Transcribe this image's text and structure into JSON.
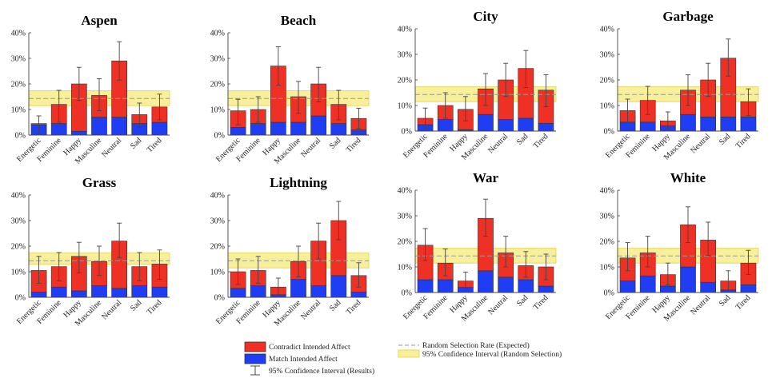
{
  "categories": [
    "Energetic",
    "Feminine",
    "Happy",
    "Masculine",
    "Neutral",
    "Sad",
    "Tired"
  ],
  "colors": {
    "contradict": "#ee3124",
    "match": "#1f3df2",
    "band": "#f7ef9a",
    "band_edge": "#e2d24a",
    "expected": "#9a9a9a"
  },
  "legend": {
    "contradict": "Contradict Intended Affect",
    "match": "Match Intended Affect",
    "ci_results": "95% Confidence Interval (Results)",
    "random_rate": "Random Selection Rate (Expected)",
    "ci_random": "95% Confidence Interval (Random Selection)"
  },
  "chart_data": [
    {
      "type": "bar",
      "title": "Aspen",
      "ytick_labels": [
        "0%",
        "10%",
        "20%",
        "30%",
        "40%"
      ],
      "ylim": [
        0,
        40
      ],
      "expected": 14.3,
      "band": [
        11.5,
        17.3
      ],
      "series": [
        {
          "name": "Match Intended Affect",
          "values": [
            4,
            4.5,
            1.5,
            7,
            7,
            4.5,
            5
          ]
        },
        {
          "name": "Contradict Intended Affect",
          "values": [
            0.5,
            7.5,
            18.5,
            8.5,
            22,
            3.5,
            6
          ]
        }
      ],
      "err": [
        [
          0.5,
          7.5
        ],
        [
          5,
          17.5
        ],
        [
          13.5,
          26.5
        ],
        [
          9.5,
          22
        ],
        [
          21.5,
          36.5
        ],
        [
          3,
          12.5
        ],
        [
          6,
          16
        ]
      ]
    },
    {
      "type": "bar",
      "title": "Beach",
      "ytick_labels": [
        "0%",
        "10%",
        "20%",
        "30%",
        "40%"
      ],
      "ylim": [
        0,
        40
      ],
      "expected": 14.3,
      "band": [
        11.5,
        17.3
      ],
      "series": [
        {
          "name": "Match Intended Affect",
          "values": [
            3,
            4.5,
            5,
            5,
            7.5,
            4.5,
            2
          ]
        },
        {
          "name": "Contradict Intended Affect",
          "values": [
            6.5,
            5.5,
            22,
            10,
            12.5,
            7.5,
            4.5
          ]
        }
      ],
      "err": [
        [
          4,
          14
        ],
        [
          5,
          15
        ],
        [
          19.5,
          34.5
        ],
        [
          8.5,
          21
        ],
        [
          13,
          26.5
        ],
        [
          6,
          17.5
        ],
        [
          2.5,
          10.5
        ]
      ]
    },
    {
      "type": "bar",
      "title": "City",
      "ytick_labels": [
        "0%",
        "10%",
        "20%",
        "30%",
        "40%"
      ],
      "ylim": [
        0,
        40
      ],
      "expected": 14.3,
      "band": [
        11.5,
        17.3
      ],
      "series": [
        {
          "name": "Match Intended Affect",
          "values": [
            2.5,
            4.5,
            0.5,
            6.5,
            4.5,
            5,
            3
          ]
        },
        {
          "name": "Contradict Intended Affect",
          "values": [
            2.5,
            5.5,
            8,
            10,
            15.5,
            19.5,
            13
          ]
        }
      ],
      "err": [
        [
          1,
          9
        ],
        [
          5,
          15
        ],
        [
          4,
          13.5
        ],
        [
          10,
          22.5
        ],
        [
          13.5,
          26.5
        ],
        [
          17,
          31.5
        ],
        [
          9.5,
          22
        ]
      ]
    },
    {
      "type": "bar",
      "title": "Garbage",
      "ytick_labels": [
        "0%",
        "10%",
        "20%",
        "30%",
        "40%"
      ],
      "ylim": [
        0,
        40
      ],
      "expected": 14.3,
      "band": [
        11.5,
        17.3
      ],
      "series": [
        {
          "name": "Match Intended Affect",
          "values": [
            3.5,
            3.5,
            2,
            6.5,
            5.5,
            5.5,
            5.5
          ]
        },
        {
          "name": "Contradict Intended Affect",
          "values": [
            4.5,
            8.5,
            2,
            9.5,
            14.5,
            23,
            6
          ]
        }
      ],
      "err": [
        [
          3.5,
          12.5
        ],
        [
          6.5,
          17.5
        ],
        [
          1,
          7.5
        ],
        [
          10,
          22
        ],
        [
          13.5,
          26.5
        ],
        [
          21.5,
          36
        ],
        [
          6,
          16.5
        ]
      ]
    },
    {
      "type": "bar",
      "title": "Grass",
      "ytick_labels": [
        "0%",
        "10%",
        "20%",
        "30%",
        "40%"
      ],
      "ylim": [
        0,
        40
      ],
      "expected": 14.3,
      "band": [
        13,
        17.3
      ],
      "series": [
        {
          "name": "Match Intended Affect",
          "values": [
            2,
            4,
            2.5,
            4.5,
            3.5,
            4.5,
            4
          ]
        },
        {
          "name": "Contradict Intended Affect",
          "values": [
            8.5,
            8,
            13.5,
            9.5,
            18.5,
            7.5,
            9
          ]
        }
      ],
      "err": [
        [
          5.5,
          16
        ],
        [
          6.5,
          17.5
        ],
        [
          9.5,
          21.5
        ],
        [
          8.5,
          20
        ],
        [
          15.5,
          29
        ],
        [
          6.5,
          17.5
        ],
        [
          7,
          18.5
        ]
      ]
    },
    {
      "type": "bar",
      "title": "Lightning",
      "ytick_labels": [
        "0%",
        "10%",
        "20%",
        "30%",
        "40%"
      ],
      "ylim": [
        0,
        40
      ],
      "expected": 14.3,
      "band": [
        11.5,
        17.3
      ],
      "series": [
        {
          "name": "Match Intended Affect",
          "values": [
            3.5,
            4.5,
            1,
            7,
            4.5,
            8.5,
            2
          ]
        },
        {
          "name": "Contradict Intended Affect",
          "values": [
            6.5,
            6,
            3,
            7,
            17.5,
            21.5,
            6.5
          ]
        }
      ],
      "err": [
        [
          5,
          15
        ],
        [
          5.5,
          16
        ],
        [
          1,
          7.5
        ],
        [
          8,
          20
        ],
        [
          15,
          29
        ],
        [
          22.5,
          37.5
        ],
        [
          4,
          13.5
        ]
      ]
    },
    {
      "type": "bar",
      "title": "War",
      "ytick_labels": [
        "0%",
        "10%",
        "20%",
        "30%",
        "40%"
      ],
      "ylim": [
        0,
        40
      ],
      "expected": 14.3,
      "band": [
        11.5,
        17.3
      ],
      "series": [
        {
          "name": "Match Intended Affect",
          "values": [
            5,
            5,
            2,
            8.5,
            6,
            5,
            2.5
          ]
        },
        {
          "name": "Contradict Intended Affect",
          "values": [
            13.5,
            6.5,
            2.5,
            20.5,
            9.5,
            5.5,
            7.5
          ]
        }
      ],
      "err": [
        [
          12.5,
          25
        ],
        [
          6.5,
          17
        ],
        [
          1.5,
          8
        ],
        [
          22,
          36.5
        ],
        [
          10,
          22
        ],
        [
          6,
          16
        ],
        [
          5,
          15
        ]
      ]
    },
    {
      "type": "bar",
      "title": "White",
      "ytick_labels": [
        "0%",
        "10%",
        "20%",
        "30%",
        "40%"
      ],
      "ylim": [
        0,
        40
      ],
      "expected": 14.3,
      "band": [
        11.5,
        17.3
      ],
      "series": [
        {
          "name": "Match Intended Affect",
          "values": [
            4.5,
            6.5,
            2.5,
            10,
            4,
            1,
            3
          ]
        },
        {
          "name": "Contradict Intended Affect",
          "values": [
            9,
            9,
            4.5,
            16.5,
            16.5,
            3.5,
            8.5
          ]
        }
      ],
      "err": [
        [
          8.5,
          19.5
        ],
        [
          10,
          22
        ],
        [
          3,
          11.5
        ],
        [
          19.5,
          33.5
        ],
        [
          14.5,
          27.5
        ],
        [
          1,
          8.5
        ],
        [
          7,
          16.5
        ]
      ]
    }
  ]
}
